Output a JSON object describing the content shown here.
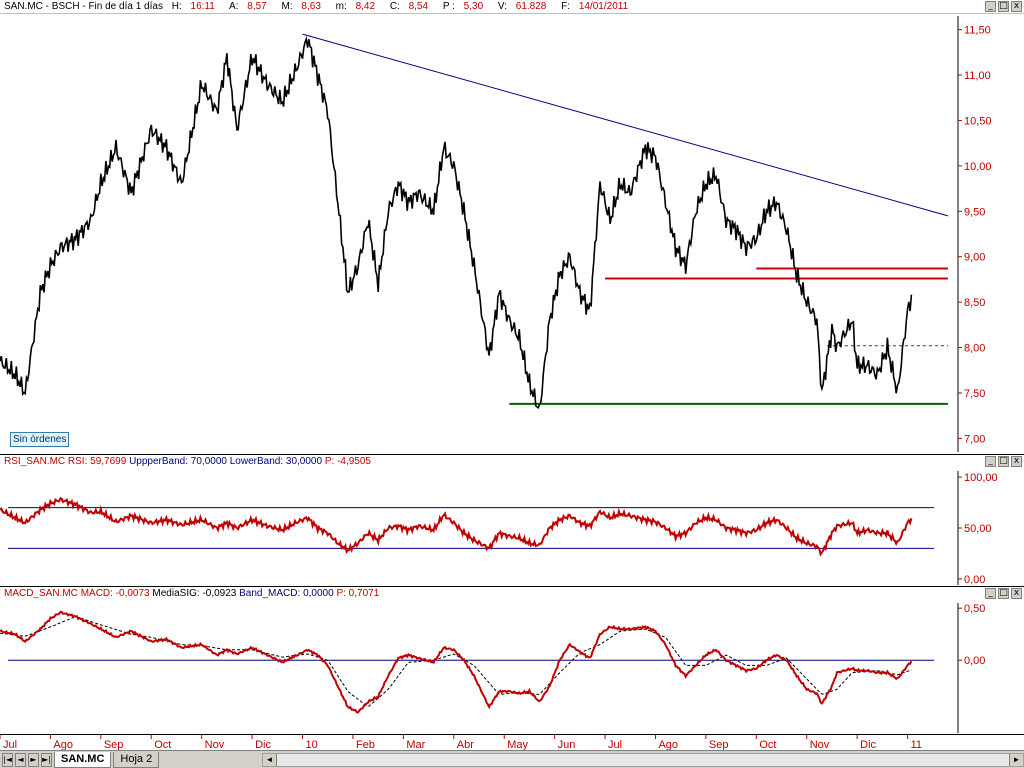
{
  "price_panel": {
    "header": {
      "symbol": "SAN.MC - BSCH - Fin de día 1 días",
      "h_label": "H:",
      "h_value": "16:11",
      "a_label": "A:",
      "a_value": "8,57",
      "m_label": "M:",
      "m_value": "8,63",
      "mm_label": "m:",
      "mm_value": "8,42",
      "c_label": "C:",
      "c_value": "8,54",
      "p_label": "P :",
      "p_value": "5,30",
      "v_label": "V:",
      "v_value": "61.828",
      "f_label": "F:",
      "f_value": "14/01/2011"
    },
    "orders_badge": "Sin órdenes"
  },
  "rsi_panel": {
    "header": {
      "name": "RSI_SAN.MC",
      "rsi_label": "RSI:",
      "rsi_value": "59,7699",
      "upper_label": "UppperBand:",
      "upper_value": "70,0000",
      "lower_label": "LowerBand:",
      "lower_value": "30,0000",
      "p_label": "P:",
      "p_value": "-4,9505"
    }
  },
  "macd_panel": {
    "header": {
      "name": "MACD_SAN.MC",
      "macd_label": "MACD:",
      "macd_value": "-0,0073",
      "sig_label": "MediaSIG:",
      "sig_value": "-0,0923",
      "band_label": "Band_MACD:",
      "band_value": "0,0000",
      "p_label": "P:",
      "p_value": "0,7071"
    }
  },
  "window_buttons": {
    "minimize": "_",
    "maximize": "□",
    "close": "x"
  },
  "bottom_bar": {
    "nav": [
      "|◄",
      "◄",
      "►",
      "►|"
    ],
    "tabs": [
      {
        "label": "SAN.MC",
        "active": true
      },
      {
        "label": "Hoja 2",
        "active": false
      }
    ],
    "scroll_left": "◄",
    "scroll_right": "►"
  },
  "colors": {
    "price_line": "#000000",
    "trendline": "#000080",
    "resistance": "#d00000",
    "support": "#006400",
    "rsi_line": "#c00000",
    "band_line": "#000080",
    "macd_line": "#c00000",
    "signal_line": "#000000",
    "axis_text": "#c00000"
  },
  "chart_data": [
    {
      "type": "line",
      "name": "price",
      "months": [
        "Jul",
        "Ago",
        "Sep",
        "Oct",
        "Nov",
        "Dic",
        "10",
        "Feb",
        "Mar",
        "Abr",
        "May",
        "Jun",
        "Jul",
        "Ago",
        "Sep",
        "Oct",
        "Nov",
        "Dic",
        "11"
      ],
      "ylim": [
        6.85,
        11.65
      ],
      "yticks": [
        "11,50",
        "11,00",
        "10,50",
        "10,00",
        "9,50",
        "9,00",
        "8,50",
        "8,00",
        "7,50",
        "7,00"
      ],
      "ytick_values": [
        11.5,
        11.0,
        10.5,
        10.0,
        9.5,
        9.0,
        8.5,
        8.0,
        7.5,
        7.0
      ],
      "close_anchors": [
        [
          0.0,
          7.85
        ],
        [
          0.3,
          7.7
        ],
        [
          0.5,
          7.5
        ],
        [
          0.8,
          8.6
        ],
        [
          1.0,
          8.9
        ],
        [
          1.2,
          9.1
        ],
        [
          1.5,
          9.2
        ],
        [
          1.8,
          9.4
        ],
        [
          2.0,
          9.8
        ],
        [
          2.3,
          10.2
        ],
        [
          2.6,
          9.7
        ],
        [
          3.0,
          10.4
        ],
        [
          3.3,
          10.2
        ],
        [
          3.6,
          9.8
        ],
        [
          4.0,
          10.9
        ],
        [
          4.3,
          10.6
        ],
        [
          4.5,
          11.2
        ],
        [
          4.7,
          10.4
        ],
        [
          5.0,
          11.2
        ],
        [
          5.3,
          10.9
        ],
        [
          5.6,
          10.7
        ],
        [
          5.9,
          11.1
        ],
        [
          6.1,
          11.4
        ],
        [
          6.3,
          11.0
        ],
        [
          6.5,
          10.6
        ],
        [
          6.7,
          9.6
        ],
        [
          6.9,
          8.6
        ],
        [
          7.1,
          8.9
        ],
        [
          7.3,
          9.4
        ],
        [
          7.5,
          8.7
        ],
        [
          7.7,
          9.5
        ],
        [
          7.9,
          9.8
        ],
        [
          8.1,
          9.6
        ],
        [
          8.3,
          9.7
        ],
        [
          8.6,
          9.5
        ],
        [
          8.8,
          10.2
        ],
        [
          9.0,
          10.0
        ],
        [
          9.2,
          9.5
        ],
        [
          9.4,
          8.9
        ],
        [
          9.7,
          7.9
        ],
        [
          9.9,
          8.6
        ],
        [
          10.1,
          8.3
        ],
        [
          10.3,
          8.1
        ],
        [
          10.5,
          7.6
        ],
        [
          10.7,
          7.3
        ],
        [
          10.9,
          8.3
        ],
        [
          11.1,
          8.8
        ],
        [
          11.3,
          9.0
        ],
        [
          11.5,
          8.6
        ],
        [
          11.7,
          8.4
        ],
        [
          11.9,
          9.8
        ],
        [
          12.1,
          9.4
        ],
        [
          12.3,
          9.8
        ],
        [
          12.5,
          9.7
        ],
        [
          12.8,
          10.2
        ],
        [
          13.0,
          10.1
        ],
        [
          13.2,
          9.6
        ],
        [
          13.4,
          9.1
        ],
        [
          13.6,
          8.9
        ],
        [
          13.8,
          9.5
        ],
        [
          14.0,
          9.8
        ],
        [
          14.2,
          9.9
        ],
        [
          14.4,
          9.4
        ],
        [
          14.6,
          9.3
        ],
        [
          14.8,
          9.1
        ],
        [
          15.0,
          9.2
        ],
        [
          15.2,
          9.5
        ],
        [
          15.4,
          9.6
        ],
        [
          15.6,
          9.3
        ],
        [
          15.8,
          8.8
        ],
        [
          16.0,
          8.5
        ],
        [
          16.2,
          8.3
        ],
        [
          16.3,
          7.5
        ],
        [
          16.5,
          8.2
        ],
        [
          16.6,
          8.0
        ],
        [
          16.9,
          8.3
        ],
        [
          17.0,
          7.8
        ],
        [
          17.2,
          7.8
        ],
        [
          17.4,
          7.7
        ],
        [
          17.6,
          8.0
        ],
        [
          17.8,
          7.5
        ],
        [
          18.0,
          8.4
        ],
        [
          18.1,
          8.6
        ]
      ],
      "trendline": {
        "x": [
          6.0,
          18.8
        ],
        "y": [
          11.45,
          9.45
        ]
      },
      "resistance_lines": [
        {
          "x": [
            12.0,
            18.8
          ],
          "y": [
            8.76,
            8.76
          ]
        },
        {
          "x": [
            15.0,
            18.8
          ],
          "y": [
            8.87,
            8.87
          ]
        }
      ],
      "support_line": {
        "x": [
          10.1,
          18.8
        ],
        "y": [
          7.38,
          7.38
        ]
      },
      "dashed_line": {
        "x": [
          16.4,
          18.8
        ],
        "y": [
          8.02,
          8.02
        ]
      }
    },
    {
      "type": "line",
      "name": "RSI",
      "ylim": [
        -6,
        106
      ],
      "yticks": [
        "100,00",
        "50,00",
        "0,00"
      ],
      "ytick_values": [
        100,
        50,
        0
      ],
      "upper_band": 70,
      "lower_band": 30,
      "anchors": [
        [
          0.0,
          68
        ],
        [
          0.3,
          60
        ],
        [
          0.5,
          55
        ],
        [
          0.8,
          68
        ],
        [
          1.0,
          74
        ],
        [
          1.2,
          78
        ],
        [
          1.5,
          73
        ],
        [
          1.8,
          65
        ],
        [
          2.0,
          66
        ],
        [
          2.3,
          56
        ],
        [
          2.6,
          62
        ],
        [
          3.0,
          55
        ],
        [
          3.3,
          58
        ],
        [
          3.6,
          53
        ],
        [
          4.0,
          58
        ],
        [
          4.3,
          50
        ],
        [
          4.5,
          55
        ],
        [
          4.7,
          50
        ],
        [
          5.0,
          58
        ],
        [
          5.3,
          52
        ],
        [
          5.6,
          48
        ],
        [
          5.9,
          56
        ],
        [
          6.1,
          60
        ],
        [
          6.3,
          50
        ],
        [
          6.5,
          45
        ],
        [
          6.7,
          35
        ],
        [
          6.9,
          28
        ],
        [
          7.1,
          35
        ],
        [
          7.3,
          45
        ],
        [
          7.5,
          38
        ],
        [
          7.7,
          50
        ],
        [
          7.9,
          52
        ],
        [
          8.1,
          48
        ],
        [
          8.3,
          52
        ],
        [
          8.6,
          48
        ],
        [
          8.8,
          63
        ],
        [
          9.0,
          55
        ],
        [
          9.2,
          45
        ],
        [
          9.4,
          38
        ],
        [
          9.7,
          30
        ],
        [
          9.9,
          45
        ],
        [
          10.1,
          42
        ],
        [
          10.3,
          40
        ],
        [
          10.5,
          35
        ],
        [
          10.7,
          33
        ],
        [
          10.9,
          50
        ],
        [
          11.1,
          58
        ],
        [
          11.3,
          62
        ],
        [
          11.5,
          55
        ],
        [
          11.7,
          52
        ],
        [
          11.9,
          66
        ],
        [
          12.1,
          60
        ],
        [
          12.3,
          64
        ],
        [
          12.5,
          62
        ],
        [
          12.8,
          58
        ],
        [
          13.0,
          56
        ],
        [
          13.2,
          50
        ],
        [
          13.4,
          42
        ],
        [
          13.6,
          45
        ],
        [
          13.8,
          55
        ],
        [
          14.0,
          60
        ],
        [
          14.2,
          58
        ],
        [
          14.4,
          50
        ],
        [
          14.6,
          48
        ],
        [
          14.8,
          45
        ],
        [
          15.0,
          48
        ],
        [
          15.2,
          55
        ],
        [
          15.4,
          58
        ],
        [
          15.6,
          50
        ],
        [
          15.8,
          40
        ],
        [
          16.0,
          35
        ],
        [
          16.2,
          32
        ],
        [
          16.3,
          25
        ],
        [
          16.5,
          45
        ],
        [
          16.6,
          52
        ],
        [
          16.9,
          55
        ],
        [
          17.0,
          45
        ],
        [
          17.2,
          48
        ],
        [
          17.4,
          45
        ],
        [
          17.6,
          45
        ],
        [
          17.8,
          35
        ],
        [
          18.0,
          55
        ],
        [
          18.1,
          60
        ]
      ]
    },
    {
      "type": "line",
      "name": "MACD",
      "ylim": [
        -0.7,
        0.55
      ],
      "yticks": [
        "0,50",
        "0,00"
      ],
      "ytick_values": [
        0.5,
        0.0
      ],
      "zero_line": 0.0,
      "macd_anchors": [
        [
          0.0,
          0.28
        ],
        [
          0.3,
          0.25
        ],
        [
          0.5,
          0.18
        ],
        [
          0.8,
          0.3
        ],
        [
          1.0,
          0.4
        ],
        [
          1.2,
          0.46
        ],
        [
          1.5,
          0.42
        ],
        [
          1.8,
          0.35
        ],
        [
          2.0,
          0.3
        ],
        [
          2.3,
          0.22
        ],
        [
          2.6,
          0.28
        ],
        [
          3.0,
          0.18
        ],
        [
          3.3,
          0.2
        ],
        [
          3.6,
          0.12
        ],
        [
          4.0,
          0.15
        ],
        [
          4.3,
          0.05
        ],
        [
          4.5,
          0.1
        ],
        [
          4.7,
          0.06
        ],
        [
          5.0,
          0.12
        ],
        [
          5.3,
          0.05
        ],
        [
          5.6,
          -0.02
        ],
        [
          5.9,
          0.05
        ],
        [
          6.1,
          0.1
        ],
        [
          6.3,
          0.05
        ],
        [
          6.5,
          -0.05
        ],
        [
          6.7,
          -0.25
        ],
        [
          6.9,
          -0.45
        ],
        [
          7.1,
          -0.5
        ],
        [
          7.3,
          -0.4
        ],
        [
          7.5,
          -0.35
        ],
        [
          7.7,
          -0.15
        ],
        [
          7.9,
          0.02
        ],
        [
          8.1,
          0.05
        ],
        [
          8.3,
          0.02
        ],
        [
          8.6,
          -0.02
        ],
        [
          8.8,
          0.12
        ],
        [
          9.0,
          0.1
        ],
        [
          9.2,
          0.0
        ],
        [
          9.4,
          -0.15
        ],
        [
          9.7,
          -0.45
        ],
        [
          9.9,
          -0.3
        ],
        [
          10.1,
          -0.3
        ],
        [
          10.3,
          -0.32
        ],
        [
          10.5,
          -0.3
        ],
        [
          10.7,
          -0.4
        ],
        [
          10.9,
          -0.25
        ],
        [
          11.1,
          0.0
        ],
        [
          11.3,
          0.15
        ],
        [
          11.5,
          0.08
        ],
        [
          11.7,
          0.02
        ],
        [
          11.9,
          0.25
        ],
        [
          12.1,
          0.32
        ],
        [
          12.3,
          0.3
        ],
        [
          12.5,
          0.3
        ],
        [
          12.8,
          0.32
        ],
        [
          13.0,
          0.28
        ],
        [
          13.2,
          0.15
        ],
        [
          13.4,
          -0.05
        ],
        [
          13.6,
          -0.15
        ],
        [
          13.8,
          -0.05
        ],
        [
          14.0,
          0.05
        ],
        [
          14.2,
          0.1
        ],
        [
          14.4,
          0.0
        ],
        [
          14.6,
          -0.05
        ],
        [
          14.8,
          -0.1
        ],
        [
          15.0,
          -0.08
        ],
        [
          15.2,
          0.0
        ],
        [
          15.4,
          0.05
        ],
        [
          15.6,
          0.0
        ],
        [
          15.8,
          -0.15
        ],
        [
          16.0,
          -0.28
        ],
        [
          16.2,
          -0.32
        ],
        [
          16.3,
          -0.42
        ],
        [
          16.5,
          -0.25
        ],
        [
          16.6,
          -0.12
        ],
        [
          16.9,
          -0.08
        ],
        [
          17.0,
          -0.1
        ],
        [
          17.2,
          -0.1
        ],
        [
          17.4,
          -0.12
        ],
        [
          17.6,
          -0.12
        ],
        [
          17.8,
          -0.18
        ],
        [
          18.0,
          -0.05
        ],
        [
          18.1,
          0.0
        ]
      ],
      "signal_anchors": [
        [
          0.0,
          0.26
        ],
        [
          0.5,
          0.23
        ],
        [
          1.0,
          0.32
        ],
        [
          1.5,
          0.42
        ],
        [
          2.0,
          0.34
        ],
        [
          2.6,
          0.25
        ],
        [
          3.0,
          0.22
        ],
        [
          3.6,
          0.15
        ],
        [
          4.0,
          0.14
        ],
        [
          4.5,
          0.1
        ],
        [
          5.0,
          0.1
        ],
        [
          5.6,
          0.03
        ],
        [
          6.1,
          0.06
        ],
        [
          6.5,
          0.0
        ],
        [
          6.9,
          -0.3
        ],
        [
          7.3,
          -0.45
        ],
        [
          7.7,
          -0.28
        ],
        [
          8.1,
          -0.02
        ],
        [
          8.6,
          0.0
        ],
        [
          9.0,
          0.06
        ],
        [
          9.4,
          -0.05
        ],
        [
          9.9,
          -0.33
        ],
        [
          10.3,
          -0.31
        ],
        [
          10.7,
          -0.33
        ],
        [
          11.1,
          -0.12
        ],
        [
          11.5,
          0.07
        ],
        [
          11.9,
          0.15
        ],
        [
          12.3,
          0.28
        ],
        [
          12.8,
          0.3
        ],
        [
          13.2,
          0.22
        ],
        [
          13.6,
          -0.05
        ],
        [
          14.0,
          -0.05
        ],
        [
          14.4,
          0.05
        ],
        [
          14.8,
          -0.05
        ],
        [
          15.2,
          -0.05
        ],
        [
          15.6,
          0.02
        ],
        [
          16.0,
          -0.18
        ],
        [
          16.3,
          -0.33
        ],
        [
          16.6,
          -0.28
        ],
        [
          16.9,
          -0.12
        ],
        [
          17.4,
          -0.1
        ],
        [
          17.8,
          -0.14
        ],
        [
          18.1,
          -0.09
        ]
      ]
    }
  ]
}
